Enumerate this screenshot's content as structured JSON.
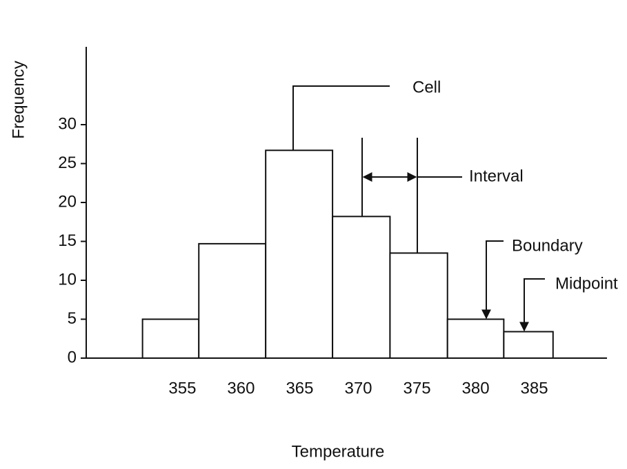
{
  "chart_data": {
    "type": "histogram",
    "y_label": "Frequency",
    "x_label": "Temperature",
    "bins": [
      351.6,
      356.4,
      362.1,
      367.8,
      372.7,
      377.6,
      382.4,
      386.6
    ],
    "values": [
      5,
      14.7,
      26.7,
      18.2,
      13.5,
      5,
      3.4
    ],
    "color": "#ffffff",
    "xlim": [
      346.8,
      391.2
    ],
    "xticks": [
      355,
      360,
      365,
      370,
      375,
      380,
      385
    ],
    "ylim": [
      0,
      40
    ],
    "yticks": [
      0,
      5,
      10,
      15,
      20,
      25,
      30
    ],
    "annotations": [
      "Cell",
      "Interval",
      "Boundary",
      "Midpoint"
    ]
  }
}
